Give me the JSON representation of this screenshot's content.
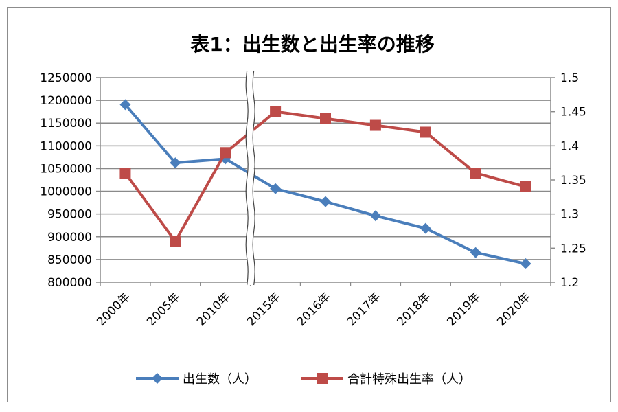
{
  "chart_data": {
    "type": "line",
    "title": "表1：出生数と出生率の推移",
    "categories": [
      "2000年",
      "2005年",
      "2010年",
      "2015年",
      "2016年",
      "2017年",
      "2018年",
      "2019年",
      "2020年"
    ],
    "axis_break_between": [
      "2010年",
      "2015年"
    ],
    "y_left": {
      "min": 800000,
      "max": 1250000,
      "step": 50000,
      "ticks": [
        "800000",
        "850000",
        "900000",
        "950000",
        "1000000",
        "1050000",
        "1100000",
        "1150000",
        "1200000",
        "1250000"
      ]
    },
    "y_right": {
      "min": 1.2,
      "max": 1.5,
      "step": 0.05,
      "ticks": [
        "1.2",
        "1.25",
        "1.3",
        "1.35",
        "1.4",
        "1.45",
        "1.5"
      ]
    },
    "grid": true,
    "legend_position": "bottom",
    "series": [
      {
        "name": "出生数（人）",
        "axis": "left",
        "color": "#4a7ebb",
        "marker": "diamond",
        "values": [
          1190547,
          1062530,
          1071304,
          1005677,
          977242,
          946065,
          918400,
          865239,
          840832
        ]
      },
      {
        "name": "合計特殊出生率（人）",
        "axis": "right",
        "color": "#be4b48",
        "marker": "square",
        "values": [
          1.36,
          1.26,
          1.39,
          1.45,
          1.44,
          1.43,
          1.42,
          1.36,
          1.34
        ]
      }
    ]
  }
}
